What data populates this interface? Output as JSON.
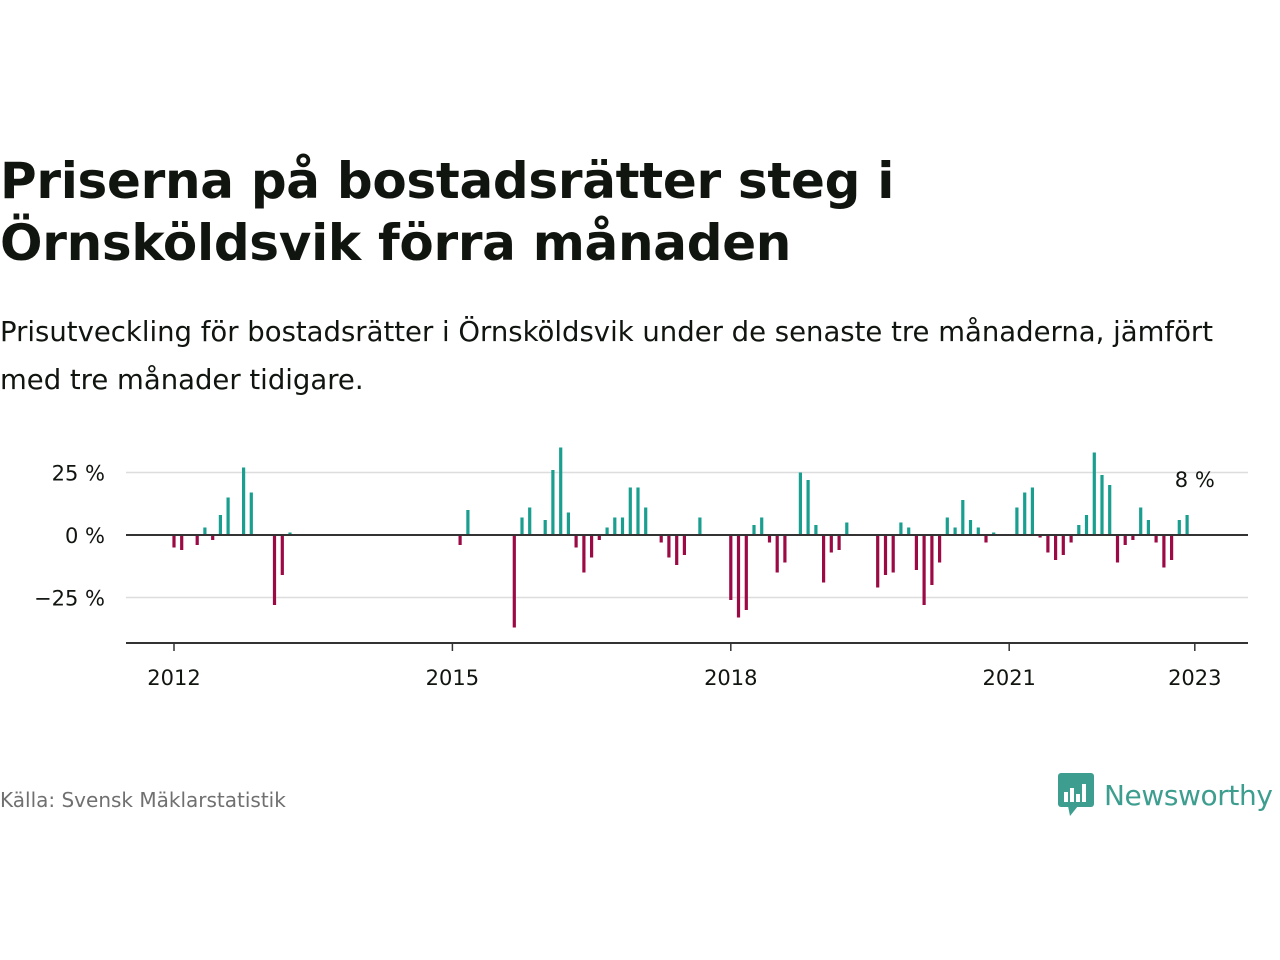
{
  "title": "Priserna på bostadsrätter steg i Örnsköldsvik förra månaden",
  "subtitle": "Prisutveckling för bostadsrätter i Örnsköldsvik under de senaste tre månaderna, jämfört med tre månader tidigare.",
  "source": "Källa: Svensk Mäklarstatistik",
  "brand": {
    "name": "Newsworthy",
    "icon": "newsworthy-logo-icon"
  },
  "colors": {
    "positive": "#1a9e8f",
    "negative": "#9b0a44",
    "grid": "#dddddd",
    "zero_line": "#333333",
    "text": "#111510"
  },
  "chart_data": {
    "type": "bar",
    "ylim": [
      -43,
      45
    ],
    "y_ticks": [
      {
        "value": 25,
        "label": "25 %"
      },
      {
        "value": 0,
        "label": "0 %"
      },
      {
        "value": -25,
        "label": "−25 %"
      }
    ],
    "x_ticks": [
      {
        "value": 2012,
        "label": "2012"
      },
      {
        "value": 2015,
        "label": "2015"
      },
      {
        "value": 2018,
        "label": "2018"
      },
      {
        "value": 2021,
        "label": "2021"
      },
      {
        "value": 2023,
        "label": "2023"
      }
    ],
    "grid": true,
    "annotation": {
      "text": "8 %",
      "x": "2023-01",
      "y": 8
    },
    "points": [
      {
        "x": "2012-01",
        "y": -5
      },
      {
        "x": "2012-02",
        "y": -6
      },
      {
        "x": "2012-04",
        "y": -4
      },
      {
        "x": "2012-05",
        "y": 3
      },
      {
        "x": "2012-06",
        "y": -2
      },
      {
        "x": "2012-07",
        "y": 8
      },
      {
        "x": "2012-08",
        "y": 15
      },
      {
        "x": "2012-10",
        "y": 27
      },
      {
        "x": "2012-11",
        "y": 17
      },
      {
        "x": "2013-02",
        "y": -28
      },
      {
        "x": "2013-03",
        "y": -16
      },
      {
        "x": "2013-04",
        "y": 1
      },
      {
        "x": "2015-02",
        "y": -4
      },
      {
        "x": "2015-03",
        "y": 10
      },
      {
        "x": "2015-09",
        "y": -37
      },
      {
        "x": "2015-10",
        "y": 7
      },
      {
        "x": "2015-11",
        "y": 11
      },
      {
        "x": "2016-01",
        "y": 6
      },
      {
        "x": "2016-02",
        "y": 26
      },
      {
        "x": "2016-03",
        "y": 35
      },
      {
        "x": "2016-04",
        "y": 9
      },
      {
        "x": "2016-05",
        "y": -5
      },
      {
        "x": "2016-06",
        "y": -15
      },
      {
        "x": "2016-07",
        "y": -9
      },
      {
        "x": "2016-08",
        "y": -2
      },
      {
        "x": "2016-09",
        "y": 3
      },
      {
        "x": "2016-10",
        "y": 7
      },
      {
        "x": "2016-11",
        "y": 7
      },
      {
        "x": "2016-12",
        "y": 19
      },
      {
        "x": "2017-01",
        "y": 19
      },
      {
        "x": "2017-02",
        "y": 11
      },
      {
        "x": "2017-04",
        "y": -3
      },
      {
        "x": "2017-05",
        "y": -9
      },
      {
        "x": "2017-06",
        "y": -12
      },
      {
        "x": "2017-07",
        "y": -8
      },
      {
        "x": "2017-09",
        "y": 7
      },
      {
        "x": "2018-01",
        "y": -26
      },
      {
        "x": "2018-02",
        "y": -33
      },
      {
        "x": "2018-03",
        "y": -30
      },
      {
        "x": "2018-04",
        "y": 4
      },
      {
        "x": "2018-05",
        "y": 7
      },
      {
        "x": "2018-06",
        "y": -3
      },
      {
        "x": "2018-07",
        "y": -15
      },
      {
        "x": "2018-08",
        "y": -11
      },
      {
        "x": "2018-10",
        "y": 25
      },
      {
        "x": "2018-11",
        "y": 22
      },
      {
        "x": "2018-12",
        "y": 4
      },
      {
        "x": "2019-01",
        "y": -19
      },
      {
        "x": "2019-02",
        "y": -7
      },
      {
        "x": "2019-03",
        "y": -6
      },
      {
        "x": "2019-04",
        "y": 5
      },
      {
        "x": "2019-08",
        "y": -21
      },
      {
        "x": "2019-09",
        "y": -16
      },
      {
        "x": "2019-10",
        "y": -15
      },
      {
        "x": "2019-11",
        "y": 5
      },
      {
        "x": "2019-12",
        "y": 3
      },
      {
        "x": "2020-01",
        "y": -14
      },
      {
        "x": "2020-02",
        "y": -28
      },
      {
        "x": "2020-03",
        "y": -20
      },
      {
        "x": "2020-04",
        "y": -11
      },
      {
        "x": "2020-05",
        "y": 7
      },
      {
        "x": "2020-06",
        "y": 3
      },
      {
        "x": "2020-07",
        "y": 14
      },
      {
        "x": "2020-08",
        "y": 6
      },
      {
        "x": "2020-09",
        "y": 3
      },
      {
        "x": "2020-10",
        "y": -3
      },
      {
        "x": "2020-11",
        "y": 1
      },
      {
        "x": "2021-02",
        "y": 11
      },
      {
        "x": "2021-03",
        "y": 17
      },
      {
        "x": "2021-04",
        "y": 19
      },
      {
        "x": "2021-05",
        "y": -1
      },
      {
        "x": "2021-06",
        "y": -7
      },
      {
        "x": "2021-07",
        "y": -10
      },
      {
        "x": "2021-08",
        "y": -8
      },
      {
        "x": "2021-09",
        "y": -3
      },
      {
        "x": "2021-10",
        "y": 4
      },
      {
        "x": "2021-11",
        "y": 8
      },
      {
        "x": "2021-12",
        "y": 33
      },
      {
        "x": "2022-01",
        "y": 24
      },
      {
        "x": "2022-02",
        "y": 20
      },
      {
        "x": "2022-03",
        "y": -11
      },
      {
        "x": "2022-04",
        "y": -4
      },
      {
        "x": "2022-05",
        "y": -2
      },
      {
        "x": "2022-06",
        "y": 11
      },
      {
        "x": "2022-07",
        "y": 6
      },
      {
        "x": "2022-08",
        "y": -3
      },
      {
        "x": "2022-09",
        "y": -13
      },
      {
        "x": "2022-10",
        "y": -10
      },
      {
        "x": "2022-11",
        "y": 6
      },
      {
        "x": "2022-12",
        "y": 8
      }
    ]
  }
}
